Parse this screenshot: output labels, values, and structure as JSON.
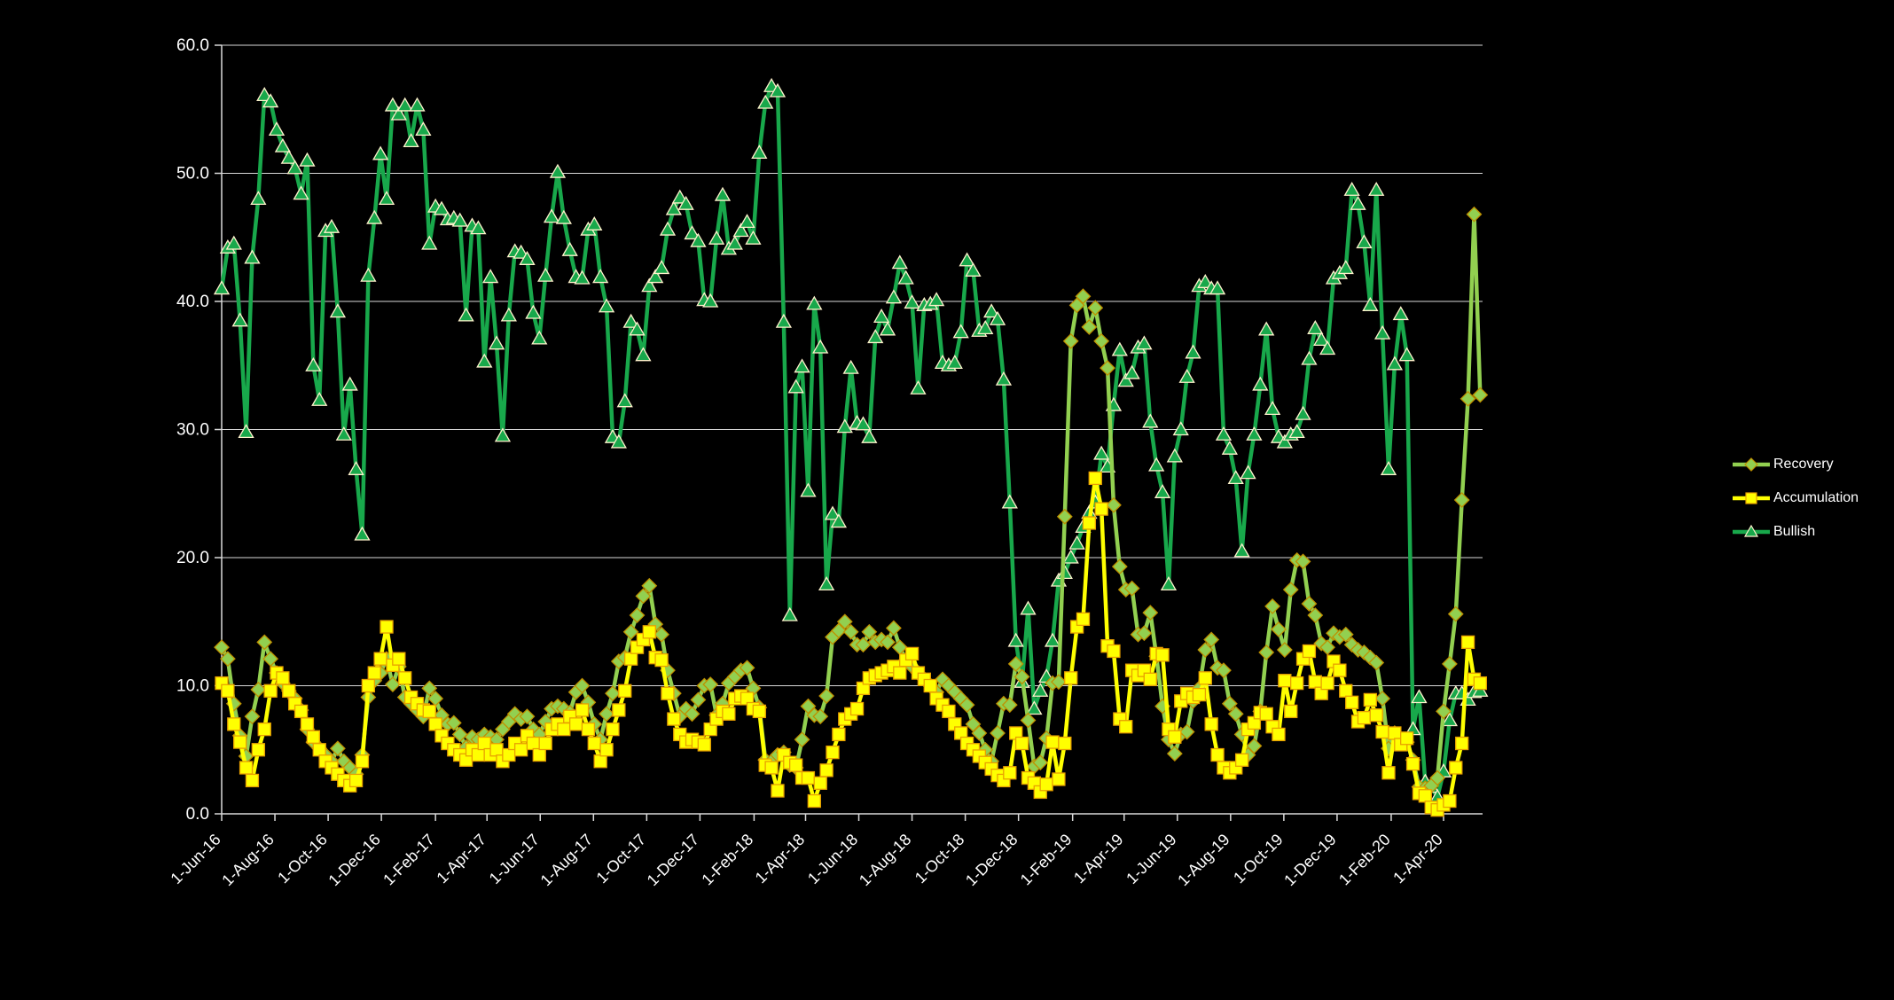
{
  "chart_data": {
    "type": "line",
    "title": "",
    "xlabel": "",
    "ylabel": "",
    "x_start_date": "2016-06-01",
    "x_step_days": 7,
    "ylim": [
      0,
      60
    ],
    "y_tick_labels": [
      "0.0",
      "10.0",
      "20.0",
      "30.0",
      "40.0",
      "50.0",
      "60.0"
    ],
    "x_tick_labels": [
      "1-Jun-16",
      "1-Aug-16",
      "1-Oct-16",
      "1-Dec-16",
      "1-Feb-17",
      "1-Apr-17",
      "1-Jun-17",
      "1-Aug-17",
      "1-Oct-17",
      "1-Dec-17",
      "1-Feb-18",
      "1-Apr-18",
      "1-Jun-18",
      "1-Aug-18",
      "1-Oct-18",
      "1-Dec-18",
      "1-Feb-19",
      "1-Apr-19",
      "1-Jun-19",
      "1-Aug-19",
      "1-Oct-19",
      "1-Dec-19",
      "1-Feb-20",
      "1-Apr-20"
    ],
    "grid": "horizontal",
    "legend_position": "right",
    "background_color": "#000000",
    "gridline_color": "#D9D9D9",
    "axis_text_color": "#FFFFFF",
    "series": [
      {
        "name": "Recovery",
        "marker": "diamond",
        "color": "#92D050",
        "marker_edge": "#BF9000",
        "values": [
          13.0,
          12.1,
          8.6,
          6.1,
          4.5,
          7.6,
          9.7,
          13.4,
          12.1,
          11.0,
          10.2,
          9.6,
          9.0,
          8.1,
          6.6,
          5.6,
          5.1,
          4.6,
          4.1,
          5.1,
          4.1,
          3.6,
          3.1,
          4.6,
          9.1,
          10.4,
          11.0,
          12.1,
          10.1,
          11.5,
          9.1,
          8.6,
          8.1,
          7.6,
          9.8,
          9.0,
          7.7,
          7.0,
          7.1,
          6.2,
          5.2,
          6.0,
          5.8,
          6.2,
          6.0,
          5.8,
          6.6,
          7.2,
          7.8,
          7.4,
          7.6,
          6.6,
          6.2,
          7.2,
          8.2,
          8.4,
          8.2,
          7.9,
          9.5,
          10.0,
          8.7,
          7.0,
          5.8,
          7.8,
          9.4,
          11.9,
          12.2,
          14.2,
          15.5,
          17.0,
          17.8,
          14.8,
          14.0,
          11.2,
          9.4,
          7.6,
          8.2,
          7.8,
          8.9,
          10.0,
          10.1,
          7.7,
          8.6,
          10.2,
          10.7,
          11.2,
          11.4,
          9.8,
          8.3,
          4.2,
          4.1,
          4.6,
          4.8,
          3.8,
          3.6,
          5.8,
          8.4,
          7.7,
          7.6,
          9.2,
          13.8,
          14.3,
          15.0,
          14.2,
          13.2,
          13.2,
          14.2,
          13.4,
          13.6,
          13.4,
          14.5,
          13.0,
          12.0,
          11.5,
          11.0,
          10.5,
          10.0,
          9.5,
          10.5,
          10.0,
          9.5,
          9.0,
          8.5,
          7.0,
          6.3,
          5.0,
          4.1,
          6.3,
          8.6,
          8.5,
          11.7,
          10.7,
          7.3,
          3.7,
          4.0,
          5.9,
          10.2,
          10.3,
          23.2,
          36.9,
          39.7,
          40.4,
          38.0,
          39.5,
          36.9,
          34.8,
          24.1,
          19.3,
          17.5,
          17.6,
          14.0,
          14.1,
          15.7,
          12.3,
          8.4,
          5.8,
          4.7,
          6.2,
          6.4,
          8.8,
          9.8,
          12.8,
          13.6,
          11.4,
          11.2,
          8.6,
          7.8,
          6.2,
          4.6,
          5.3,
          8.0,
          12.6,
          16.2,
          14.4,
          12.8,
          17.5,
          19.8,
          19.7,
          16.4,
          15.5,
          13.3,
          13.0,
          14.1,
          13.8,
          14.0,
          13.2,
          12.8,
          12.6,
          12.2,
          11.8,
          9.0,
          5.1,
          6.3,
          5.8,
          5.6,
          4.2,
          2.1,
          2.0,
          2.2,
          2.8,
          8.0,
          11.7,
          15.6,
          24.5,
          32.4,
          46.8,
          32.7
        ]
      },
      {
        "name": "Accumulation",
        "marker": "square",
        "color": "#FFFF00",
        "marker_edge": "#E8A000",
        "values": [
          10.2,
          9.6,
          7.0,
          5.6,
          3.6,
          2.6,
          5.0,
          6.6,
          9.6,
          11.0,
          10.6,
          9.6,
          8.6,
          8.0,
          7.0,
          6.0,
          5.0,
          4.1,
          3.6,
          3.1,
          2.6,
          2.2,
          2.6,
          4.1,
          10.0,
          11.0,
          12.1,
          14.6,
          11.6,
          12.1,
          10.6,
          9.1,
          8.6,
          8.1,
          8.0,
          7.0,
          6.1,
          5.5,
          5.0,
          4.6,
          4.2,
          5.0,
          4.6,
          5.5,
          4.6,
          5.0,
          4.1,
          4.6,
          5.5,
          5.0,
          6.1,
          5.5,
          4.6,
          5.5,
          6.6,
          7.0,
          6.6,
          7.6,
          7.0,
          8.1,
          6.6,
          5.5,
          4.1,
          5.0,
          6.6,
          8.1,
          9.6,
          12.1,
          13.0,
          13.6,
          14.2,
          12.2,
          12.0,
          9.4,
          7.4,
          6.2,
          5.6,
          5.8,
          5.6,
          5.4,
          6.6,
          7.4,
          8.0,
          7.8,
          9.0,
          9.2,
          9.0,
          8.2,
          8.0,
          3.8,
          3.6,
          1.8,
          4.6,
          4.0,
          3.8,
          2.8,
          2.8,
          1.0,
          2.4,
          3.4,
          4.8,
          6.2,
          7.4,
          7.8,
          8.2,
          9.8,
          10.6,
          10.8,
          11.0,
          11.2,
          11.5,
          11.0,
          12.0,
          12.5,
          11.0,
          10.5,
          10.0,
          9.0,
          8.5,
          8.0,
          7.0,
          6.3,
          5.5,
          5.0,
          4.5,
          4.0,
          3.5,
          3.0,
          2.6,
          3.2,
          6.3,
          5.5,
          2.8,
          2.4,
          1.7,
          2.3,
          5.6,
          2.7,
          5.5,
          10.6,
          14.6,
          15.2,
          22.7,
          26.2,
          23.8,
          13.1,
          12.7,
          7.4,
          6.8,
          11.2,
          10.8,
          11.2,
          10.5,
          12.5,
          12.4,
          6.6,
          6.0,
          8.8,
          9.4,
          9.1,
          9.3,
          10.6,
          7.0,
          4.6,
          3.6,
          3.2,
          3.6,
          4.2,
          6.6,
          7.1,
          7.9,
          7.8,
          6.8,
          6.2,
          10.4,
          8.0,
          10.2,
          12.1,
          12.7,
          10.3,
          9.4,
          10.2,
          11.9,
          11.2,
          9.6,
          8.7,
          7.2,
          7.5,
          8.9,
          7.7,
          6.4,
          3.2,
          6.3,
          5.4,
          5.9,
          3.9,
          1.6,
          1.4,
          0.5,
          0.3,
          0.7,
          1.0,
          3.6,
          5.5,
          13.4,
          10.5,
          10.2
        ]
      },
      {
        "name": "Bullish",
        "marker": "triangle",
        "color": "#18A84B",
        "marker_edge": "#FFF2CC",
        "values": [
          41.0,
          44.2,
          44.5,
          38.5,
          29.8,
          43.4,
          48.0,
          56.1,
          55.6,
          53.4,
          52.1,
          51.2,
          50.4,
          48.4,
          51.0,
          35.0,
          32.3,
          45.5,
          45.8,
          39.2,
          29.6,
          33.5,
          26.9,
          21.8,
          42.0,
          46.5,
          51.5,
          48.0,
          55.3,
          54.6,
          55.3,
          52.5,
          55.3,
          53.4,
          44.5,
          47.4,
          47.2,
          46.4,
          46.5,
          46.3,
          38.9,
          45.9,
          45.7,
          35.3,
          41.9,
          36.7,
          29.5,
          38.9,
          43.9,
          43.8,
          43.3,
          39.1,
          37.1,
          42.0,
          46.6,
          50.1,
          46.5,
          44.0,
          41.9,
          41.8,
          45.6,
          46.0,
          41.9,
          39.6,
          29.4,
          29.0,
          32.2,
          38.4,
          37.8,
          35.8,
          41.2,
          41.9,
          42.6,
          45.6,
          47.2,
          48.1,
          47.6,
          45.3,
          44.7,
          40.1,
          40.0,
          44.9,
          48.3,
          44.1,
          44.5,
          45.5,
          46.2,
          44.9,
          51.6,
          55.5,
          56.8,
          56.4,
          38.4,
          15.5,
          33.3,
          34.9,
          25.2,
          39.8,
          36.4,
          17.9,
          23.4,
          22.8,
          30.2,
          34.8,
          30.5,
          30.4,
          29.4,
          37.2,
          38.8,
          37.8,
          40.3,
          43.0,
          41.8,
          39.9,
          33.2,
          39.7,
          39.8,
          40.1,
          35.2,
          35.0,
          35.2,
          37.6,
          43.2,
          42.4,
          37.7,
          37.9,
          39.2,
          38.6,
          33.9,
          24.3,
          13.5,
          10.3,
          16.0,
          8.2,
          9.6,
          10.7,
          13.5,
          18.2,
          18.8,
          20.0,
          21.1,
          22.4,
          23.5,
          24.3,
          28.1,
          27.1,
          31.9,
          36.2,
          33.8,
          34.4,
          36.4,
          36.7,
          30.6,
          27.2,
          25.1,
          17.9,
          27.9,
          30.0,
          34.1,
          36.0,
          41.2,
          41.5,
          41.0,
          41.0,
          29.6,
          28.5,
          26.2,
          20.5,
          26.6,
          29.6,
          33.5,
          37.8,
          31.6,
          29.4,
          29.0,
          29.6,
          29.8,
          31.2,
          35.5,
          37.9,
          37.0,
          36.3,
          41.8,
          42.2,
          42.6,
          48.7,
          47.6,
          44.6,
          39.7,
          48.7,
          37.5,
          26.9,
          35.1,
          39.0,
          35.8,
          6.6,
          9.1,
          2.5,
          2.1,
          1.3,
          3.3,
          7.3,
          9.4,
          9.4,
          8.9,
          9.5,
          9.6
        ]
      }
    ]
  },
  "legend": {
    "items": [
      {
        "label": "Recovery"
      },
      {
        "label": "Accumulation"
      },
      {
        "label": "Bullish"
      }
    ]
  }
}
